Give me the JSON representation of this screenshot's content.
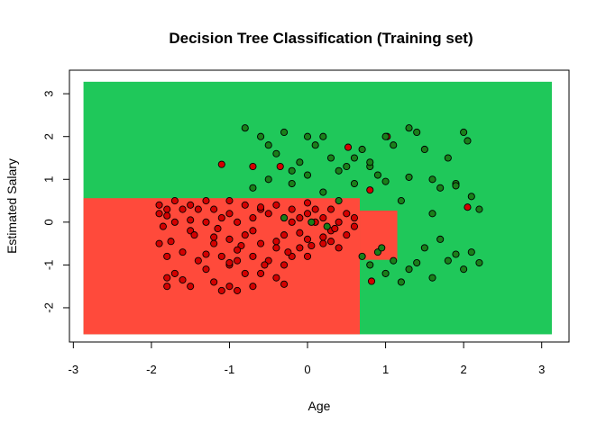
{
  "chart_data": {
    "type": "scatter",
    "title": "Decision Tree Classification (Training set)",
    "xlabel": "Age",
    "ylabel": "Estimated Salary",
    "xlim": [
      -3.05,
      3.35
    ],
    "ylim": [
      -2.8,
      3.55
    ],
    "x_ticks": [
      -3,
      -2,
      -1,
      0,
      1,
      2,
      3
    ],
    "y_ticks": [
      -2,
      -1,
      0,
      1,
      2,
      3
    ],
    "grid": false,
    "colors": {
      "class_0": "#ff4a3b",
      "class_1": "#1fc85a",
      "point_0": "#d40000",
      "point_1": "#1a7f1a",
      "point_edge": "#000000"
    },
    "decision_regions": [
      {
        "class": 1,
        "x": [
          -2.87,
          3.13
        ],
        "y": [
          -2.62,
          3.28
        ]
      },
      {
        "class": 0,
        "x": [
          -2.87,
          0.67
        ],
        "y": [
          -2.62,
          0.56
        ]
      },
      {
        "class": 0,
        "x": [
          0.67,
          1.15
        ],
        "y": [
          -0.88,
          0.27
        ]
      }
    ],
    "series": [
      {
        "class": 0,
        "x": [
          -1.9,
          -1.9,
          -1.9,
          -1.8,
          -1.8,
          -1.8,
          -1.8,
          -1.7,
          -1.7,
          -1.7,
          -1.6,
          -1.6,
          -1.5,
          -1.5,
          -1.5,
          -1.4,
          -1.4,
          -1.3,
          -1.3,
          -1.3,
          -1.2,
          -1.2,
          -1.2,
          -1.1,
          -1.1,
          -1.1,
          -1.0,
          -1.0,
          -1.0,
          -1.0,
          -1.0,
          -0.9,
          -0.9,
          -0.9,
          -0.8,
          -0.8,
          -0.8,
          -0.7,
          -0.7,
          -0.7,
          -0.6,
          -0.6,
          -0.6,
          -0.5,
          -0.5,
          -0.4,
          -0.4,
          -0.4,
          -0.3,
          -0.3,
          -0.3,
          -0.2,
          -0.2,
          -0.2,
          -0.1,
          -0.1,
          0.0,
          0.0,
          0.0,
          0.1,
          0.1,
          0.2,
          0.2,
          0.3,
          0.3,
          0.4,
          0.4,
          0.5,
          0.5,
          0.6,
          0.6,
          -1.1,
          -0.7,
          -0.35,
          0.52,
          1.02,
          2.05,
          0.8,
          0.82,
          -1.85,
          -1.75,
          -1.6,
          -1.45,
          -1.3,
          -1.15,
          -1.0,
          -0.85,
          -0.7,
          -0.55,
          -0.4,
          -0.25,
          -0.1,
          0.05,
          0.2,
          0.35,
          -1.8,
          -1.5,
          -1.2,
          -0.9,
          -0.6,
          -0.3,
          0.0,
          0.3
        ],
        "y": [
          0.4,
          -0.5,
          0.2,
          -1.3,
          -0.8,
          0.3,
          -1.5,
          0.0,
          -1.2,
          0.5,
          -0.7,
          0.3,
          -1.5,
          -0.2,
          0.4,
          -0.9,
          0.3,
          -1.1,
          0.0,
          0.5,
          -1.4,
          -0.5,
          0.3,
          -1.6,
          -0.8,
          0.1,
          -1.5,
          -1.0,
          -0.4,
          0.2,
          0.5,
          -1.6,
          -0.9,
          0.0,
          -1.2,
          -0.3,
          0.4,
          -1.5,
          -0.8,
          0.1,
          -1.2,
          -0.5,
          0.3,
          -0.9,
          0.2,
          -1.3,
          -0.6,
          0.4,
          -1.0,
          -0.3,
          0.1,
          -0.8,
          0.0,
          0.3,
          -0.6,
          0.1,
          -0.4,
          0.2,
          -0.8,
          0.0,
          0.3,
          -0.5,
          0.1,
          -0.2,
          0.3,
          -0.6,
          0.0,
          -0.3,
          0.2,
          -0.1,
          0.1,
          1.35,
          1.3,
          1.3,
          1.75,
          2.0,
          0.35,
          0.75,
          -1.38,
          -0.1,
          -0.45,
          -1.35,
          -0.3,
          -0.75,
          -0.15,
          -0.95,
          -0.55,
          -0.2,
          -1.0,
          -0.45,
          -0.7,
          -0.25,
          -0.55,
          -0.35,
          -0.15,
          0.15,
          0.05,
          -0.35,
          -0.65,
          0.35,
          -1.45,
          0.45,
          -0.45
        ]
      },
      {
        "class": 1,
        "x": [
          -0.8,
          -0.6,
          -0.5,
          -0.4,
          -0.3,
          -0.2,
          -0.1,
          0.0,
          0.1,
          0.2,
          0.3,
          0.4,
          0.5,
          0.6,
          0.7,
          0.8,
          0.9,
          1.0,
          1.1,
          1.2,
          1.3,
          1.4,
          1.5,
          1.6,
          1.7,
          1.8,
          1.9,
          2.0,
          2.1,
          2.2,
          0.7,
          0.8,
          0.9,
          1.0,
          1.1,
          1.2,
          1.3,
          1.4,
          1.5,
          1.6,
          1.7,
          1.8,
          1.9,
          2.0,
          2.1,
          2.2,
          -0.7,
          -0.5,
          -0.2,
          0.0,
          0.2,
          0.4,
          0.6,
          0.8,
          1.0,
          1.3,
          1.6,
          1.9,
          2.05,
          -0.3,
          0.05,
          0.25,
          0.95
        ],
        "y": [
          2.2,
          2.0,
          1.8,
          1.6,
          2.1,
          1.2,
          1.4,
          2.0,
          1.8,
          2.0,
          1.5,
          1.2,
          1.3,
          1.5,
          1.7,
          1.3,
          1.1,
          2.0,
          1.8,
          0.5,
          2.2,
          2.1,
          1.7,
          1.0,
          0.8,
          1.5,
          0.9,
          2.1,
          0.6,
          0.3,
          -0.8,
          -1.0,
          -0.7,
          -1.2,
          -0.9,
          -1.4,
          -1.1,
          -0.95,
          -0.6,
          -1.3,
          -0.4,
          -0.9,
          -0.75,
          -1.1,
          -0.7,
          -0.95,
          0.8,
          1.0,
          0.9,
          1.1,
          0.7,
          0.5,
          0.9,
          1.4,
          0.95,
          1.05,
          0.2,
          0.85,
          1.9,
          0.1,
          0.0,
          -0.1,
          -0.6
        ]
      }
    ]
  }
}
